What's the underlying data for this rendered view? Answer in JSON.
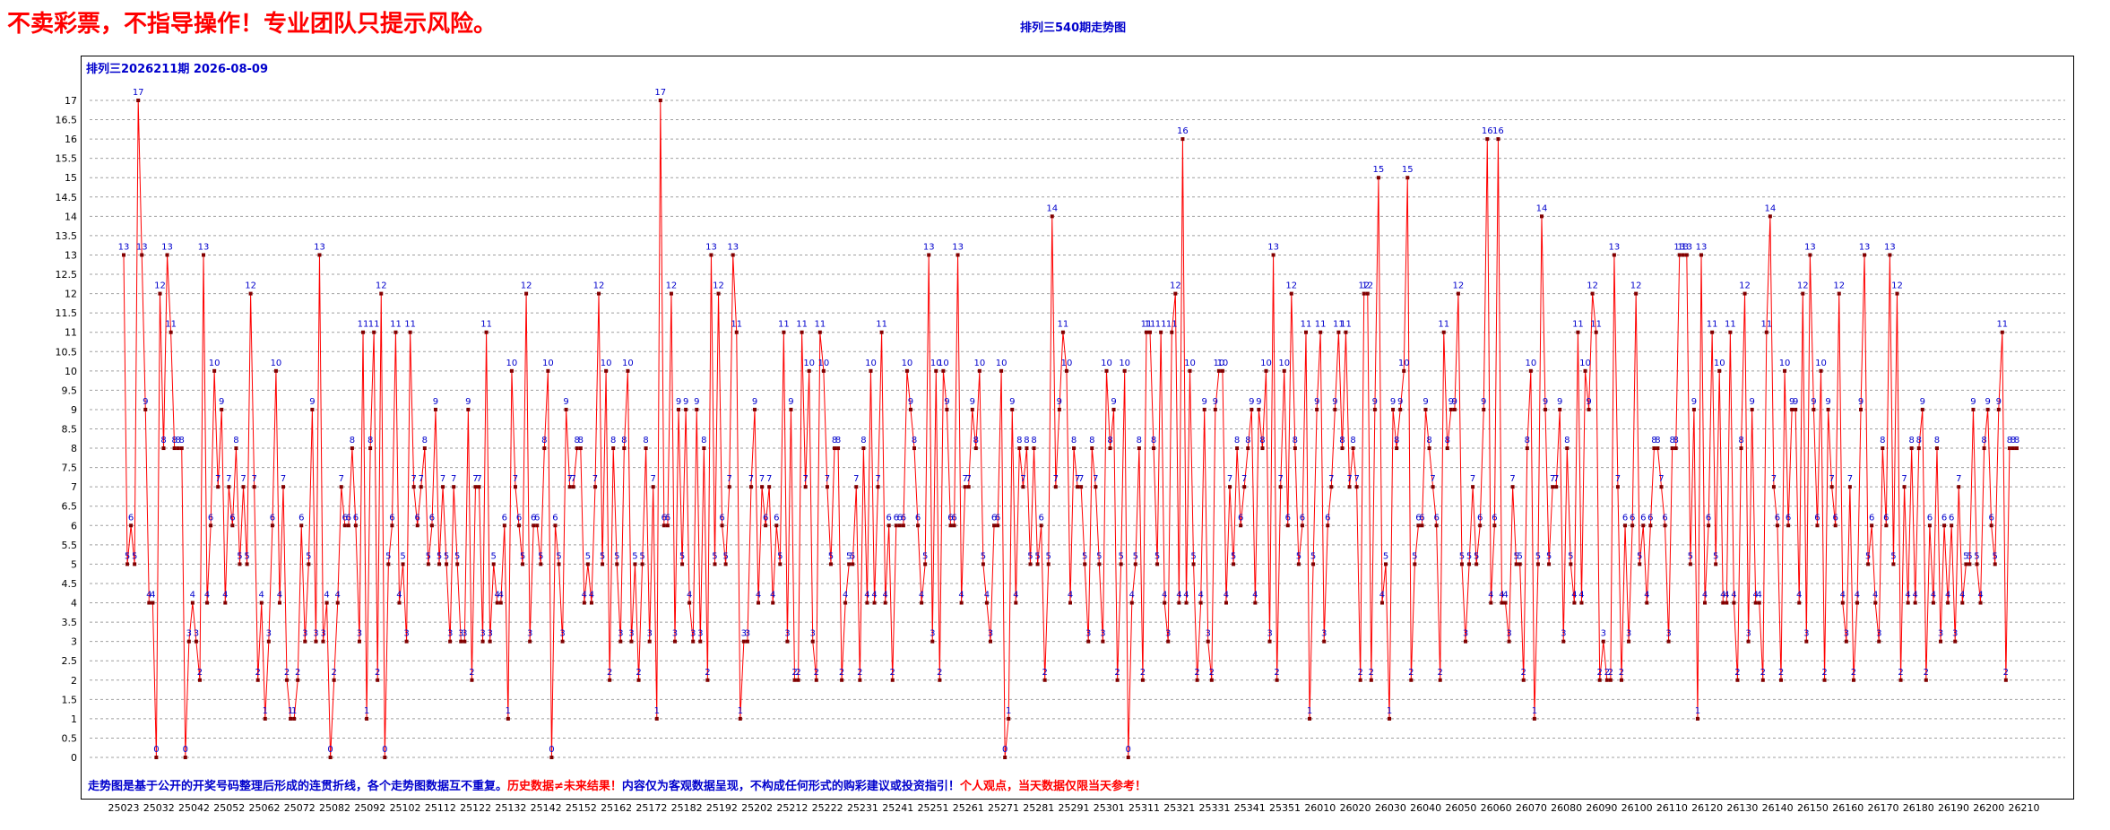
{
  "page": {
    "headline": "不卖彩票，不指导操作！专业团队只提示风险。",
    "chart_title": "排列三540期走势图",
    "period_label": "排列三2026211期  2026-08-09",
    "footer": {
      "part1": "走势图是基于公开的开奖号码整理后形成的连贯折线，各个走势图数据互不重复。",
      "part2": "历史数据≠未来结果！",
      "part3": "内容仅为客观数据呈现，不构成任何形式的购彩建议或投资指引！",
      "part4": "个人观点，当天数据仅限当天参考！"
    }
  },
  "colors": {
    "line": "#ff0000",
    "marker": "#800000",
    "label": "#0000cc",
    "grid": "#a0a0a0",
    "headline": "#ff0000"
  },
  "chart_data": {
    "type": "line",
    "ylim": [
      0,
      17
    ],
    "yticks": [
      "0",
      "0.5",
      "1",
      "1.5",
      "2",
      "2.5",
      "3",
      "3.5",
      "4",
      "4.5",
      "5",
      "5.5",
      "6",
      "6.5",
      "7",
      "7.5",
      "8",
      "8.5",
      "9",
      "9.5",
      "10",
      "10.5",
      "11",
      "11.5",
      "12",
      "12.5",
      "13",
      "13.5",
      "14",
      "14.5",
      "15",
      "15.5",
      "16",
      "16.5",
      "17"
    ],
    "x_tick_labels": [
      "25023",
      "25032",
      "25042",
      "25052",
      "25062",
      "25072",
      "25082",
      "25092",
      "25102",
      "25112",
      "25122",
      "25132",
      "25142",
      "25152",
      "25162",
      "25172",
      "25182",
      "25192",
      "25202",
      "25212",
      "25222",
      "25231",
      "25241",
      "25251",
      "25261",
      "25271",
      "25281",
      "25291",
      "25301",
      "25311",
      "25321",
      "25331",
      "25341",
      "25351",
      "26010",
      "26020",
      "26030",
      "26040",
      "26050",
      "26060",
      "26070",
      "26080",
      "26090",
      "26100",
      "26110",
      "26120",
      "26130",
      "26140",
      "26150",
      "26160",
      "26170",
      "26180",
      "26190",
      "26200",
      "26210"
    ],
    "grid": "horizontal dashed",
    "values": [
      13,
      5,
      6,
      5,
      17,
      13,
      9,
      4,
      4,
      0,
      12,
      8,
      13,
      11,
      8,
      8,
      8,
      0,
      3,
      4,
      3,
      2,
      13,
      4,
      6,
      10,
      7,
      9,
      4,
      7,
      6,
      8,
      5,
      7,
      5,
      12,
      7,
      2,
      4,
      1,
      3,
      6,
      10,
      4,
      7,
      2,
      1,
      1,
      2,
      6,
      3,
      5,
      9,
      3,
      13,
      3,
      4,
      0,
      2,
      4,
      7,
      6,
      6,
      8,
      6,
      3,
      11,
      1,
      8,
      11,
      2,
      12,
      0,
      5,
      6,
      11,
      4,
      5,
      3,
      11,
      7,
      6,
      7,
      8,
      5,
      6,
      9,
      5,
      7,
      5,
      3,
      7,
      5,
      3,
      3,
      9,
      2,
      7,
      7,
      3,
      11,
      3,
      5,
      4,
      4,
      6,
      1,
      10,
      7,
      6,
      5,
      12,
      3,
      6,
      6,
      5,
      8,
      10,
      0,
      6,
      5,
      3,
      9,
      7,
      7,
      8,
      8,
      4,
      5,
      4,
      7,
      12,
      5,
      10,
      2,
      8,
      5,
      3,
      8,
      10,
      3,
      5,
      2,
      5,
      8,
      3,
      7,
      1,
      17,
      6,
      6,
      12,
      3,
      9,
      5,
      9,
      4,
      3,
      9,
      3,
      8,
      2,
      13,
      5,
      12,
      6,
      5,
      7,
      13,
      11,
      1,
      3,
      3,
      7,
      9,
      4,
      7,
      6,
      7,
      4,
      6,
      5,
      11,
      3,
      9,
      2,
      2,
      11,
      7,
      10,
      3,
      2,
      11,
      10,
      7,
      5,
      8,
      8,
      2,
      4,
      5,
      5,
      7,
      2,
      8,
      4,
      10,
      4,
      7,
      11,
      4,
      6,
      2,
      6,
      6,
      6,
      10,
      9,
      8,
      6,
      4,
      5,
      13,
      3,
      10,
      2,
      10,
      9,
      6,
      6,
      13,
      4,
      7,
      7,
      9,
      8,
      10,
      5,
      4,
      3,
      6,
      6,
      10,
      0,
      1,
      9,
      4,
      8,
      7,
      8,
      5,
      8,
      5,
      6,
      2,
      5,
      14,
      7,
      9,
      11,
      10,
      4,
      8,
      7,
      7,
      5,
      3,
      8,
      7,
      5,
      3,
      10,
      8,
      9,
      2,
      5,
      10,
      0,
      4,
      5,
      8,
      2,
      11,
      11,
      8,
      5,
      11,
      4,
      3,
      11,
      12,
      4,
      16,
      4,
      10,
      5,
      2,
      4,
      9,
      3,
      2,
      9,
      10,
      10,
      4,
      7,
      5,
      8,
      6,
      7,
      8,
      9,
      4,
      9,
      8,
      10,
      3,
      13,
      2,
      7,
      10,
      6,
      12,
      8,
      5,
      6,
      11,
      1,
      5,
      9,
      11,
      3,
      6,
      7,
      9,
      11,
      8,
      11,
      7,
      8,
      7,
      2,
      12,
      12,
      2,
      9,
      15,
      4,
      5,
      1,
      9,
      8,
      9,
      10,
      15,
      2,
      5,
      6,
      6,
      9,
      8,
      7,
      6,
      2,
      11,
      8,
      9,
      9,
      12,
      5,
      3,
      5,
      7,
      5,
      6,
      9,
      16,
      4,
      6,
      16,
      4,
      4,
      3,
      7,
      5,
      5,
      2,
      8,
      10,
      1,
      5,
      14,
      9,
      5,
      7,
      7,
      9,
      3,
      8,
      5,
      4,
      11,
      4,
      10,
      9,
      12,
      11,
      2,
      3,
      2,
      2,
      13,
      7,
      2,
      6,
      3,
      6,
      12,
      5,
      6,
      4,
      6,
      8,
      8,
      7,
      6,
      3,
      8,
      8,
      13,
      13,
      13,
      5,
      9,
      1,
      13,
      4,
      6,
      11,
      5,
      10,
      4,
      4,
      11,
      4,
      2,
      8,
      12,
      3,
      9,
      4,
      4,
      2,
      11,
      14,
      7,
      6,
      2,
      10,
      6,
      9,
      9,
      4,
      12,
      3,
      13,
      9,
      6,
      10,
      2,
      9,
      7,
      6,
      12,
      4,
      3,
      7,
      2,
      4,
      9,
      13,
      5,
      6,
      4,
      3,
      8,
      6,
      13,
      5,
      12,
      2,
      7,
      4,
      8,
      4,
      8,
      9,
      2,
      6,
      4,
      8,
      3,
      6,
      4,
      6,
      3,
      7,
      4,
      5,
      5,
      9,
      5,
      4,
      8,
      9,
      6,
      5,
      9,
      11,
      2,
      8,
      8,
      8
    ]
  }
}
